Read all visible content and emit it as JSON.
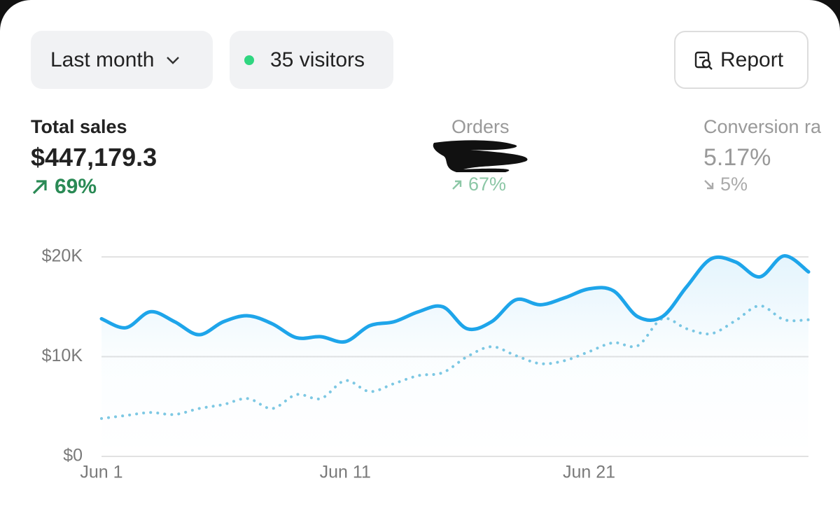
{
  "toolbar": {
    "period": "Last month",
    "visitors": "35 visitors",
    "report": "Report"
  },
  "metrics": [
    {
      "label": "Total sales",
      "value": "$447,179.3",
      "change": "69%"
    },
    {
      "label": "Orders",
      "change": "67%"
    },
    {
      "label": "Conversion ra",
      "value": "5.17%",
      "change": "5%"
    }
  ],
  "chart_data": {
    "type": "line",
    "categories": [
      "Jun 1",
      null,
      null,
      null,
      null,
      null,
      null,
      null,
      null,
      null,
      "Jun 11",
      null,
      null,
      null,
      null,
      null,
      null,
      null,
      null,
      null,
      "Jun 21",
      null,
      null,
      null,
      null,
      null,
      null,
      null,
      null,
      null
    ],
    "series": [
      {
        "color": "#1ea5ea",
        "style": "solid",
        "area": true,
        "values": [
          13800,
          12900,
          14500,
          13500,
          12200,
          13500,
          14100,
          13300,
          11900,
          12000,
          11500,
          13100,
          13500,
          14500,
          15000,
          12800,
          13500,
          15700,
          15200,
          15900,
          16800,
          16600,
          14000,
          14000,
          17000,
          19800,
          19500,
          18000,
          20100,
          18500
        ]
      },
      {
        "color": "#7ec8e3",
        "style": "dotted",
        "area": false,
        "values": [
          3800,
          4100,
          4400,
          4200,
          4800,
          5200,
          5800,
          4800,
          6200,
          5800,
          7600,
          6500,
          7300,
          8100,
          8400,
          10000,
          11000,
          10100,
          9300,
          9600,
          10500,
          11400,
          11100,
          13800,
          12800,
          12300,
          13600,
          15100,
          13700,
          13700
        ]
      }
    ],
    "ylim": [
      0,
      20000
    ],
    "yticks": [
      {
        "value": 0,
        "label": "$0"
      },
      {
        "value": 10000,
        "label": "$10K"
      },
      {
        "value": 20000,
        "label": "$20K"
      }
    ],
    "grid": true
  }
}
